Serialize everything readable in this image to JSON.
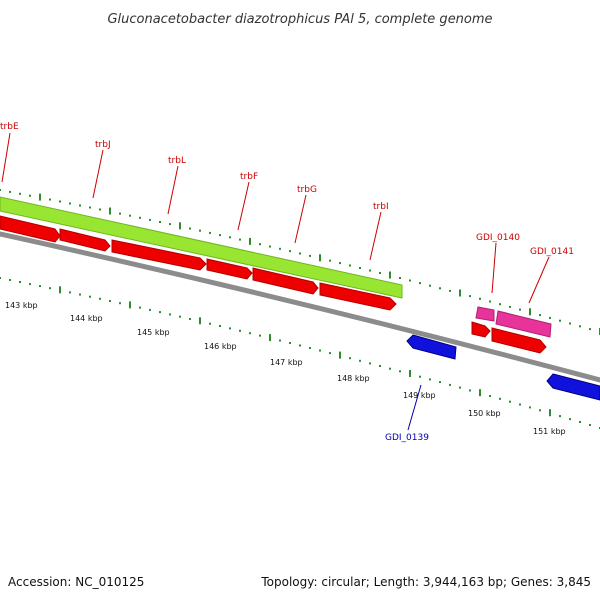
{
  "title": "Gluconacetobacter diazotrophicus PAl 5, complete genome",
  "footer": {
    "accession": "Accession: NC_010125",
    "summary": "Topology: circular; Length: 3,944,163 bp; Genes: 3,845"
  },
  "colors": {
    "backbone": "#8c8c8c",
    "tick_green": "#2e8b2e",
    "red_label": "#cc0000",
    "blue_label": "#0000aa",
    "lime_feature": "#99e632",
    "red_feature": "#ee0000",
    "pink_feature": "#e8339a",
    "blue_feature": "#1111dd"
  },
  "scale_labels": [
    "143 kbp",
    "144 kbp",
    "145 kbp",
    "146 kbp",
    "147 kbp",
    "148 kbp",
    "149 kbp",
    "150 kbp",
    "151 kbp"
  ],
  "gene_labels": {
    "trbE": "trbE",
    "trbJ": "trbJ",
    "trbL": "trbL",
    "trbF": "trbF",
    "trbG": "trbG",
    "trbI": "trbI",
    "GDI_0140": "GDI_0140",
    "GDI_0141": "GDI_0141",
    "GDI_0139": "GDI_0139"
  }
}
